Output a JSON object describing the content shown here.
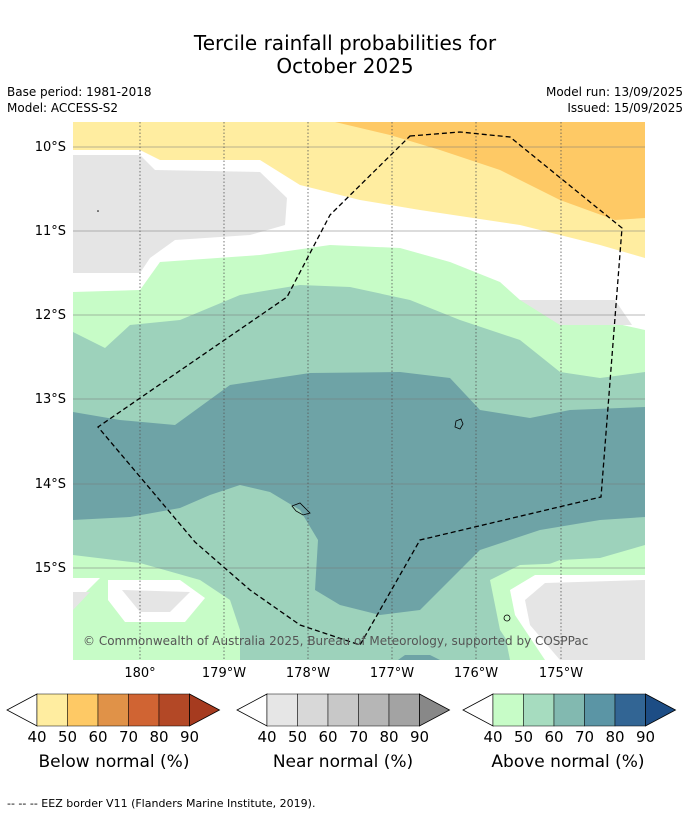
{
  "title_line1": "Tercile rainfall probabilities for",
  "title_line2": "October 2025",
  "meta": {
    "base_period": "Base period: 1981-2018",
    "model": "Model: ACCESS-S2",
    "model_run": "Model run: 13/09/2025",
    "issued": "Issued: 15/09/2025"
  },
  "map": {
    "lat_labels": [
      "10°S",
      "11°S",
      "12°S",
      "13°S",
      "14°S",
      "15°S"
    ],
    "lon_labels": [
      "180°",
      "179°W",
      "178°W",
      "177°W",
      "176°W",
      "175°W"
    ],
    "copyright": "© Commonwealth of Australia 2025, Bureau of Meteorology, supported by COSPPac",
    "colors": {
      "below_40": "#ffeda0",
      "below_50": "#fec965",
      "near": "#e5e5e5",
      "above_40": "#c7fcc7",
      "above_50": "#9dd2bb",
      "above_60": "#6ea3a6",
      "land": "#ffffff"
    }
  },
  "colorbars": [
    {
      "name": "Below normal (%)",
      "ticks": [
        "40",
        "50",
        "60",
        "70",
        "80",
        "90"
      ],
      "colors": [
        "#ffeda0",
        "#fec965",
        "#e09248",
        "#d06433",
        "#b34826",
        "#a63b1f"
      ]
    },
    {
      "name": "Near normal (%)",
      "ticks": [
        "40",
        "50",
        "60",
        "70",
        "80",
        "90"
      ],
      "colors": [
        "#e6e6e6",
        "#d8d8d8",
        "#c8c8c8",
        "#b6b6b6",
        "#a3a3a3",
        "#888888"
      ]
    },
    {
      "name": "Above normal (%)",
      "ticks": [
        "40",
        "50",
        "60",
        "70",
        "80",
        "90"
      ],
      "colors": [
        "#c7fcc7",
        "#a6dcbf",
        "#82b9b0",
        "#5b95a5",
        "#326594",
        "#1d4d85"
      ]
    }
  ],
  "footer": "--  --  -- EEZ border V11 (Flanders Marine Institute, 2019)."
}
